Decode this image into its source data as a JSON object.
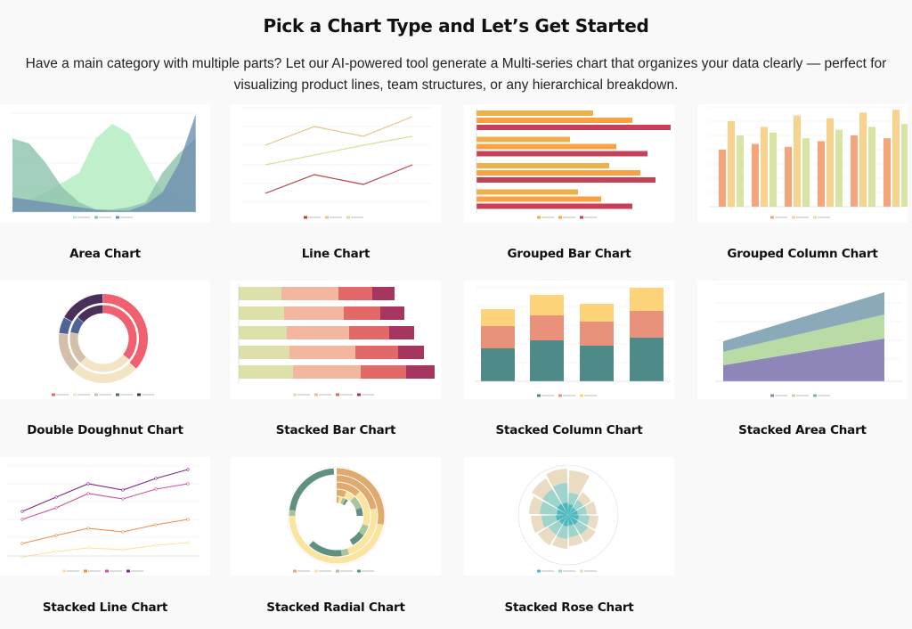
{
  "header": {
    "title": "Pick a Chart Type and Let’s Get Started",
    "description_line1": "Have a main category with multiple parts? Let our AI-powered tool generate a Multi-series chart that organizes your data clearly — perfect for",
    "description_line2": "visualizing product lines, team structures, or any hierarchical breakdown."
  },
  "charts": [
    {
      "label": "Area Chart",
      "colors": [
        "#bdeec8",
        "#8cc3ad",
        "#6f8fb0"
      ]
    },
    {
      "label": "Line Chart",
      "colors": [
        "#b5413c",
        "#e3c48c",
        "#d8df98"
      ]
    },
    {
      "label": "Grouped Bar Chart",
      "colors": [
        "#ecb14d",
        "#fca042",
        "#c64155"
      ]
    },
    {
      "label": "Grouped Column Chart",
      "colors": [
        "#f6a47c",
        "#f8d38e",
        "#d9e4a4"
      ]
    },
    {
      "label": "Double Doughnut Chart",
      "colors": [
        "#f0606e",
        "#f3e4c4",
        "#d4bfa8",
        "#4f6496",
        "#4a2f5a"
      ]
    },
    {
      "label": "Stacked Bar Chart",
      "colors": [
        "#dde0a8",
        "#f3b7a0",
        "#e36868",
        "#a63660"
      ]
    },
    {
      "label": "Stacked Column Chart",
      "colors": [
        "#4e8a87",
        "#e9917a",
        "#fdd47a"
      ]
    },
    {
      "label": "Stacked Area Chart",
      "colors": [
        "#8e86b8",
        "#b9dca6",
        "#8aaab9"
      ]
    },
    {
      "label": "Stacked Line Chart",
      "colors": [
        "#fde2a0",
        "#f08a4b",
        "#d04fa0",
        "#7b2c86"
      ]
    },
    {
      "label": "Stacked Radial Chart",
      "colors": [
        "#e0a96d",
        "#fbe3a0",
        "#a9c49a",
        "#5f9080"
      ]
    },
    {
      "label": "Stacked Rose Chart",
      "colors": [
        "#4cb8bd",
        "#9ed4cc",
        "#e9dcc2"
      ]
    }
  ]
}
